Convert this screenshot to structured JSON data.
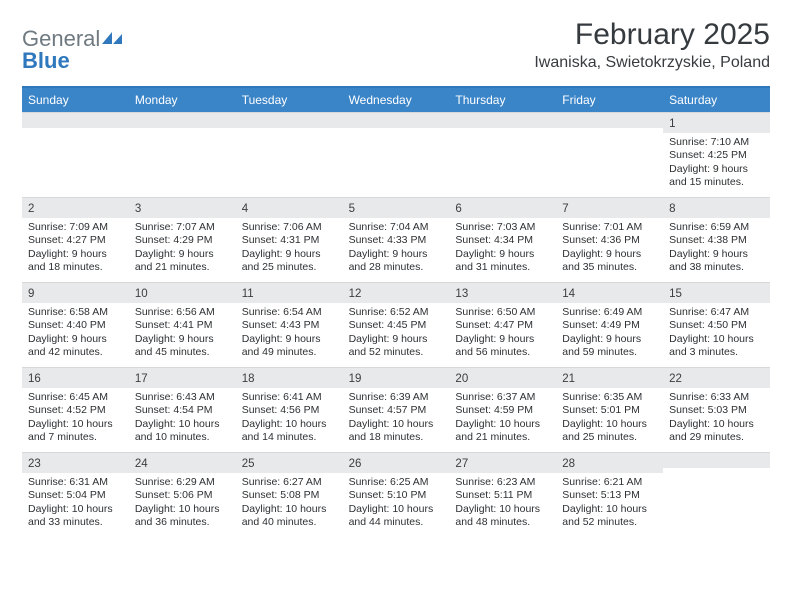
{
  "logo": {
    "part1": "General",
    "part2": "Blue"
  },
  "title": "February 2025",
  "location": "Iwaniska, Swietokrzyskie, Poland",
  "colors": {
    "header_bar": "#3a84c8",
    "top_rule": "#2f78bd",
    "daynum_bg": "#e8e9ea",
    "text": "#2d3033",
    "logo_gray": "#6f7a80",
    "logo_blue": "#2f78bd"
  },
  "typography": {
    "title_fontsize": 30,
    "location_fontsize": 16,
    "dow_fontsize": 12,
    "cell_fontsize": 10.5
  },
  "calendar": {
    "dow": [
      "Sunday",
      "Monday",
      "Tuesday",
      "Wednesday",
      "Thursday",
      "Friday",
      "Saturday"
    ],
    "weeks": [
      [
        null,
        null,
        null,
        null,
        null,
        null,
        {
          "n": "1",
          "sunrise": "Sunrise: 7:10 AM",
          "sunset": "Sunset: 4:25 PM",
          "daylight": "Daylight: 9 hours and 15 minutes."
        }
      ],
      [
        {
          "n": "2",
          "sunrise": "Sunrise: 7:09 AM",
          "sunset": "Sunset: 4:27 PM",
          "daylight": "Daylight: 9 hours and 18 minutes."
        },
        {
          "n": "3",
          "sunrise": "Sunrise: 7:07 AM",
          "sunset": "Sunset: 4:29 PM",
          "daylight": "Daylight: 9 hours and 21 minutes."
        },
        {
          "n": "4",
          "sunrise": "Sunrise: 7:06 AM",
          "sunset": "Sunset: 4:31 PM",
          "daylight": "Daylight: 9 hours and 25 minutes."
        },
        {
          "n": "5",
          "sunrise": "Sunrise: 7:04 AM",
          "sunset": "Sunset: 4:33 PM",
          "daylight": "Daylight: 9 hours and 28 minutes."
        },
        {
          "n": "6",
          "sunrise": "Sunrise: 7:03 AM",
          "sunset": "Sunset: 4:34 PM",
          "daylight": "Daylight: 9 hours and 31 minutes."
        },
        {
          "n": "7",
          "sunrise": "Sunrise: 7:01 AM",
          "sunset": "Sunset: 4:36 PM",
          "daylight": "Daylight: 9 hours and 35 minutes."
        },
        {
          "n": "8",
          "sunrise": "Sunrise: 6:59 AM",
          "sunset": "Sunset: 4:38 PM",
          "daylight": "Daylight: 9 hours and 38 minutes."
        }
      ],
      [
        {
          "n": "9",
          "sunrise": "Sunrise: 6:58 AM",
          "sunset": "Sunset: 4:40 PM",
          "daylight": "Daylight: 9 hours and 42 minutes."
        },
        {
          "n": "10",
          "sunrise": "Sunrise: 6:56 AM",
          "sunset": "Sunset: 4:41 PM",
          "daylight": "Daylight: 9 hours and 45 minutes."
        },
        {
          "n": "11",
          "sunrise": "Sunrise: 6:54 AM",
          "sunset": "Sunset: 4:43 PM",
          "daylight": "Daylight: 9 hours and 49 minutes."
        },
        {
          "n": "12",
          "sunrise": "Sunrise: 6:52 AM",
          "sunset": "Sunset: 4:45 PM",
          "daylight": "Daylight: 9 hours and 52 minutes."
        },
        {
          "n": "13",
          "sunrise": "Sunrise: 6:50 AM",
          "sunset": "Sunset: 4:47 PM",
          "daylight": "Daylight: 9 hours and 56 minutes."
        },
        {
          "n": "14",
          "sunrise": "Sunrise: 6:49 AM",
          "sunset": "Sunset: 4:49 PM",
          "daylight": "Daylight: 9 hours and 59 minutes."
        },
        {
          "n": "15",
          "sunrise": "Sunrise: 6:47 AM",
          "sunset": "Sunset: 4:50 PM",
          "daylight": "Daylight: 10 hours and 3 minutes."
        }
      ],
      [
        {
          "n": "16",
          "sunrise": "Sunrise: 6:45 AM",
          "sunset": "Sunset: 4:52 PM",
          "daylight": "Daylight: 10 hours and 7 minutes."
        },
        {
          "n": "17",
          "sunrise": "Sunrise: 6:43 AM",
          "sunset": "Sunset: 4:54 PM",
          "daylight": "Daylight: 10 hours and 10 minutes."
        },
        {
          "n": "18",
          "sunrise": "Sunrise: 6:41 AM",
          "sunset": "Sunset: 4:56 PM",
          "daylight": "Daylight: 10 hours and 14 minutes."
        },
        {
          "n": "19",
          "sunrise": "Sunrise: 6:39 AM",
          "sunset": "Sunset: 4:57 PM",
          "daylight": "Daylight: 10 hours and 18 minutes."
        },
        {
          "n": "20",
          "sunrise": "Sunrise: 6:37 AM",
          "sunset": "Sunset: 4:59 PM",
          "daylight": "Daylight: 10 hours and 21 minutes."
        },
        {
          "n": "21",
          "sunrise": "Sunrise: 6:35 AM",
          "sunset": "Sunset: 5:01 PM",
          "daylight": "Daylight: 10 hours and 25 minutes."
        },
        {
          "n": "22",
          "sunrise": "Sunrise: 6:33 AM",
          "sunset": "Sunset: 5:03 PM",
          "daylight": "Daylight: 10 hours and 29 minutes."
        }
      ],
      [
        {
          "n": "23",
          "sunrise": "Sunrise: 6:31 AM",
          "sunset": "Sunset: 5:04 PM",
          "daylight": "Daylight: 10 hours and 33 minutes."
        },
        {
          "n": "24",
          "sunrise": "Sunrise: 6:29 AM",
          "sunset": "Sunset: 5:06 PM",
          "daylight": "Daylight: 10 hours and 36 minutes."
        },
        {
          "n": "25",
          "sunrise": "Sunrise: 6:27 AM",
          "sunset": "Sunset: 5:08 PM",
          "daylight": "Daylight: 10 hours and 40 minutes."
        },
        {
          "n": "26",
          "sunrise": "Sunrise: 6:25 AM",
          "sunset": "Sunset: 5:10 PM",
          "daylight": "Daylight: 10 hours and 44 minutes."
        },
        {
          "n": "27",
          "sunrise": "Sunrise: 6:23 AM",
          "sunset": "Sunset: 5:11 PM",
          "daylight": "Daylight: 10 hours and 48 minutes."
        },
        {
          "n": "28",
          "sunrise": "Sunrise: 6:21 AM",
          "sunset": "Sunset: 5:13 PM",
          "daylight": "Daylight: 10 hours and 52 minutes."
        },
        null
      ]
    ]
  }
}
